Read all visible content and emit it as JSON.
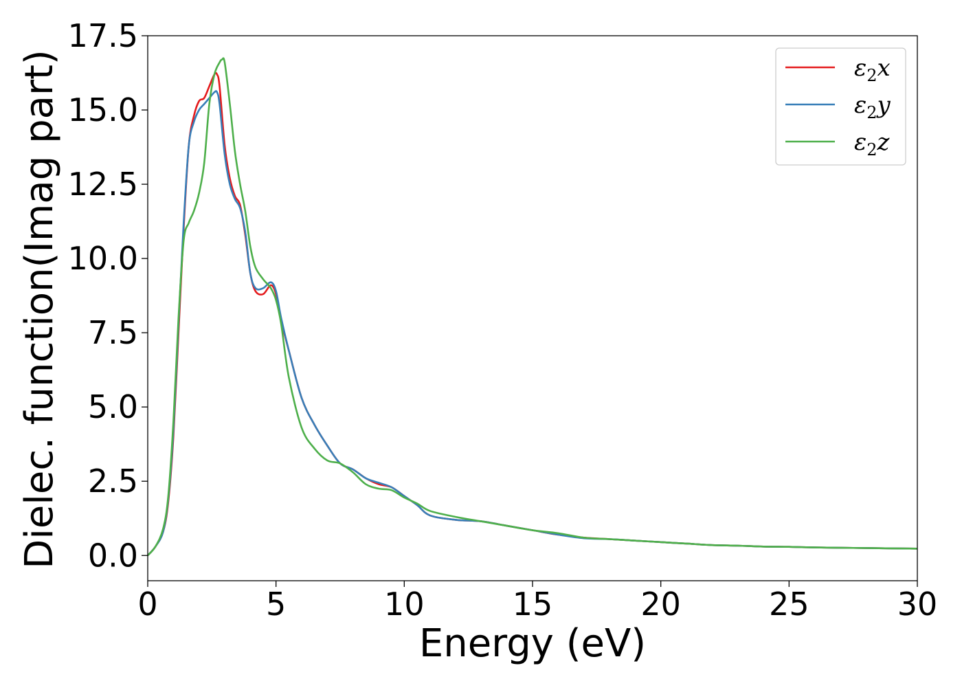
{
  "chart_data": {
    "type": "line",
    "title": "",
    "xlabel": "Energy (eV)",
    "ylabel": "Dielec. function(Imag part)",
    "xlim": [
      0,
      30
    ],
    "ylim": [
      -0.85,
      17.5
    ],
    "x_ticks": [
      0,
      5,
      10,
      15,
      20,
      25,
      30
    ],
    "x_tick_labels": [
      "0",
      "5",
      "10",
      "15",
      "20",
      "25",
      "30"
    ],
    "y_ticks": [
      0.0,
      2.5,
      5.0,
      7.5,
      10.0,
      12.5,
      15.0,
      17.5
    ],
    "y_tick_labels": [
      "0.0",
      "2.5",
      "5.0",
      "7.5",
      "10.0",
      "12.5",
      "15.0",
      "17.5"
    ],
    "grid": false,
    "legend_position": "top-right",
    "series": [
      {
        "name": "ε2x",
        "label_base": "ε",
        "label_sub": "2",
        "label_suffix": "x",
        "color": "#e41a1c",
        "x": [
          0,
          0.3,
          0.6,
          0.8,
          1.0,
          1.2,
          1.4,
          1.6,
          1.8,
          2.0,
          2.2,
          2.4,
          2.6,
          2.7,
          2.8,
          3.0,
          3.2,
          3.4,
          3.6,
          3.8,
          4.0,
          4.2,
          4.5,
          4.8,
          5.0,
          5.2,
          5.5,
          6.0,
          6.5,
          7.0,
          7.5,
          8.0,
          8.5,
          9.0,
          9.5,
          10.0,
          10.5,
          11.0,
          12.0,
          13.0,
          14.0,
          15.0,
          16.0,
          17.0,
          18.0,
          19.0,
          20.0,
          21.0,
          22.0,
          23.0,
          24.0,
          25.0,
          26.0,
          27.0,
          28.0,
          29.0,
          30.0
        ],
        "y": [
          0,
          0.3,
          0.8,
          1.8,
          4.0,
          7.5,
          11.0,
          13.8,
          14.8,
          15.3,
          15.4,
          15.8,
          16.2,
          16.2,
          15.8,
          13.8,
          12.7,
          12.1,
          11.8,
          10.8,
          9.5,
          8.9,
          8.8,
          9.1,
          8.8,
          7.9,
          6.9,
          5.3,
          4.4,
          3.7,
          3.1,
          2.9,
          2.6,
          2.4,
          2.3,
          2.0,
          1.7,
          1.35,
          1.2,
          1.15,
          1.0,
          0.85,
          0.7,
          0.6,
          0.55,
          0.5,
          0.45,
          0.4,
          0.35,
          0.33,
          0.3,
          0.29,
          0.27,
          0.26,
          0.25,
          0.24,
          0.23
        ]
      },
      {
        "name": "ε2y",
        "label_base": "ε",
        "label_sub": "2",
        "label_suffix": "y",
        "color": "#377eb8",
        "x": [
          0,
          0.3,
          0.6,
          0.8,
          1.0,
          1.2,
          1.4,
          1.6,
          1.8,
          2.0,
          2.2,
          2.4,
          2.6,
          2.7,
          2.8,
          3.0,
          3.2,
          3.4,
          3.6,
          3.8,
          4.0,
          4.2,
          4.5,
          4.8,
          5.0,
          5.2,
          5.5,
          6.0,
          6.5,
          7.0,
          7.5,
          8.0,
          8.5,
          9.0,
          9.5,
          10.0,
          10.5,
          11.0,
          12.0,
          13.0,
          14.0,
          15.0,
          16.0,
          17.0,
          18.0,
          19.0,
          20.0,
          21.0,
          22.0,
          23.0,
          24.0,
          25.0,
          26.0,
          27.0,
          28.0,
          29.0,
          30.0
        ],
        "y": [
          0,
          0.3,
          0.8,
          1.9,
          4.2,
          7.8,
          11.2,
          13.8,
          14.6,
          15.0,
          15.2,
          15.4,
          15.6,
          15.6,
          15.2,
          13.5,
          12.5,
          12.0,
          11.7,
          10.9,
          9.5,
          9.0,
          9.0,
          9.2,
          8.9,
          8.0,
          6.9,
          5.3,
          4.4,
          3.7,
          3.1,
          2.9,
          2.6,
          2.45,
          2.3,
          2.0,
          1.7,
          1.35,
          1.2,
          1.15,
          1.0,
          0.85,
          0.7,
          0.58,
          0.55,
          0.5,
          0.45,
          0.4,
          0.35,
          0.33,
          0.3,
          0.29,
          0.27,
          0.26,
          0.25,
          0.24,
          0.23
        ]
      },
      {
        "name": "ε2z",
        "label_base": "ε",
        "label_sub": "2",
        "label_suffix": "z",
        "color": "#4daf4a",
        "x": [
          0,
          0.3,
          0.6,
          0.8,
          1.0,
          1.2,
          1.4,
          1.6,
          1.8,
          2.0,
          2.2,
          2.4,
          2.6,
          2.8,
          2.9,
          3.0,
          3.2,
          3.4,
          3.6,
          3.8,
          4.0,
          4.2,
          4.5,
          4.8,
          5.0,
          5.2,
          5.5,
          6.0,
          6.5,
          7.0,
          7.5,
          8.0,
          8.5,
          9.0,
          9.5,
          10.0,
          10.5,
          11.0,
          12.0,
          13.0,
          14.0,
          15.0,
          16.0,
          17.0,
          18.0,
          19.0,
          20.0,
          21.0,
          22.0,
          23.0,
          24.0,
          25.0,
          26.0,
          27.0,
          28.0,
          29.0,
          30.0
        ],
        "y": [
          0,
          0.3,
          0.9,
          2.0,
          4.5,
          8.0,
          10.6,
          11.2,
          11.6,
          12.2,
          13.2,
          15.2,
          16.2,
          16.6,
          16.7,
          16.6,
          15.2,
          13.6,
          12.5,
          11.6,
          10.4,
          9.7,
          9.3,
          9.0,
          8.6,
          7.8,
          6.0,
          4.3,
          3.6,
          3.2,
          3.1,
          2.8,
          2.4,
          2.25,
          2.2,
          1.95,
          1.75,
          1.5,
          1.3,
          1.15,
          1.0,
          0.85,
          0.75,
          0.6,
          0.55,
          0.5,
          0.45,
          0.4,
          0.35,
          0.33,
          0.3,
          0.29,
          0.27,
          0.26,
          0.25,
          0.24,
          0.23
        ]
      }
    ]
  }
}
